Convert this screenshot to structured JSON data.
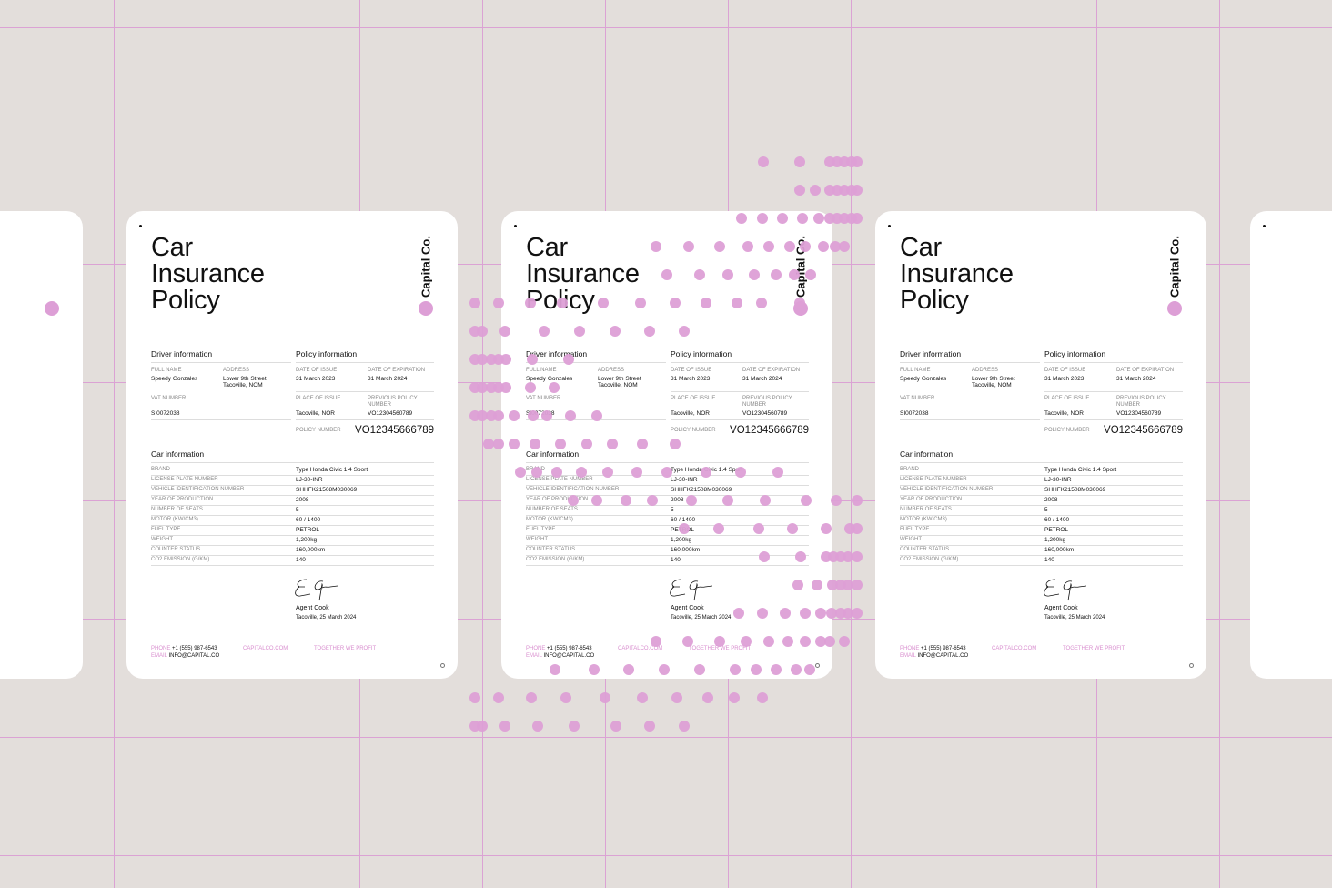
{
  "colors": {
    "background": "#e3dedb",
    "accent": "#dd9fd6",
    "grid": "#dba2d4"
  },
  "document": {
    "title_lines": [
      "Car",
      "Insurance",
      "Policy"
    ],
    "brand": "Capital Co.",
    "driver": {
      "heading": "Driver information",
      "full_name_label": "FULL NAME",
      "full_name": "Speedy Gonzales",
      "address_label": "ADDRESS",
      "address_line1": "Lower 9th Street",
      "address_line2": "Tacoville, NOM",
      "vat_label": "VAT NUMBER",
      "vat": "SI0072038"
    },
    "policy": {
      "heading": "Policy information",
      "issue_label": "DATE OF ISSUE",
      "issue": "31 March 2023",
      "expiration_label": "DATE OF EXPIRATION",
      "expiration": "31 March 2024",
      "place_label": "PLACE OF ISSUE",
      "place": "Tacoville, NOR",
      "previous_label": "PREVIOUS POLICY NUMBER",
      "previous": "VO12304560789",
      "number_label": "POLICY NUMBER",
      "number": "VO12345666789"
    },
    "car": {
      "heading": "Car information",
      "rows": [
        {
          "label": "BRAND",
          "value": "Type Honda Civic 1.4 Sport"
        },
        {
          "label": "LICENSE PLATE NUMBER",
          "value": "LJ-30-INR"
        },
        {
          "label": "VEHICLE IDENTIFICATION NUMBER",
          "value": "SHHFK21508M030069"
        },
        {
          "label": "YEAR OF PRODUCTION",
          "value": "2008"
        },
        {
          "label": "NUMBER OF SEATS",
          "value": "5"
        },
        {
          "label": "MOTOR (KW/CM3)",
          "value": "60 / 1400"
        },
        {
          "label": "FUEL TYPE",
          "value": "PETROL"
        },
        {
          "label": "WEIGHT",
          "value": "1,200kg"
        },
        {
          "label": "COUNTER STATUS",
          "value": "160,000km"
        },
        {
          "label": "CO2 EMISSION (G/KM)",
          "value": "140"
        }
      ]
    },
    "signature": {
      "name": "Agent Cook",
      "place_date": "Tacoville, 25 March 2024"
    },
    "footer": {
      "phone_label": "PHONE",
      "phone": "+1 (555) 987-6543",
      "email_label": "EMAIL",
      "email": "INFO@CAPITAL.CO",
      "website": "CAPITALCO.COM",
      "slogan": "TOGETHER WE PROFIT"
    }
  }
}
